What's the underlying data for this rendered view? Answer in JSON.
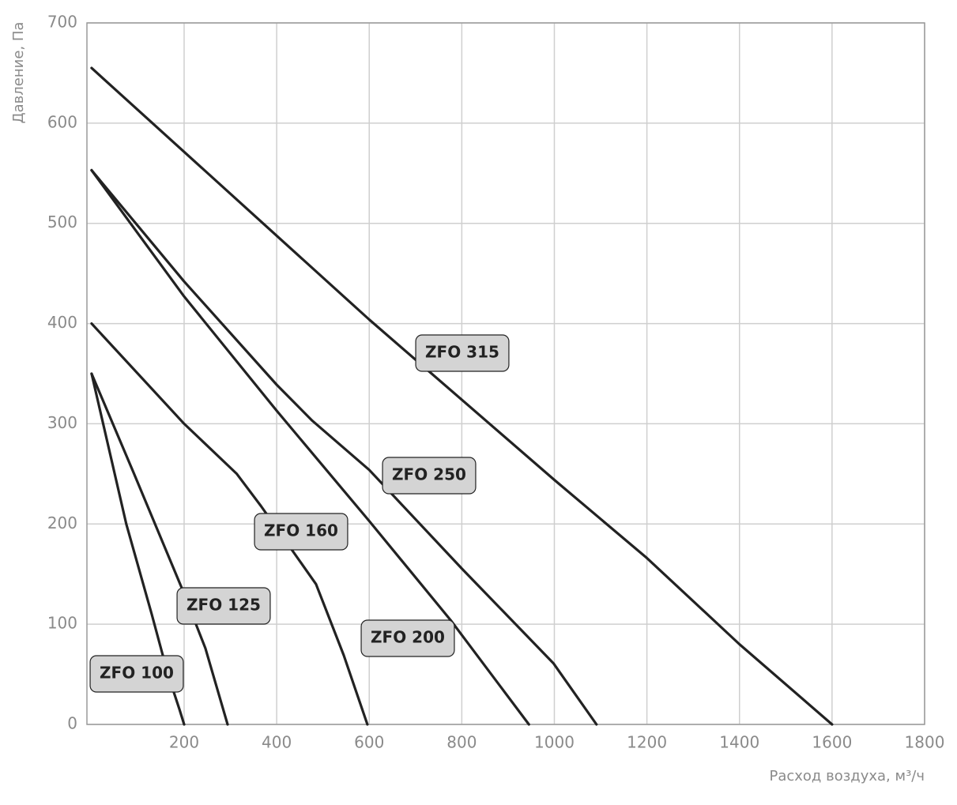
{
  "chart_data": {
    "type": "line",
    "xlabel": "Расход воздуха, м³/ч",
    "ylabel": "Давление, Па",
    "xlim": [
      -10,
      1800
    ],
    "ylim": [
      0,
      700
    ],
    "xticks": [
      200,
      400,
      600,
      800,
      1000,
      1200,
      1400,
      1600,
      1800
    ],
    "yticks": [
      0,
      100,
      200,
      300,
      400,
      500,
      600,
      700
    ],
    "grid": true,
    "series": [
      {
        "name": "ZFO 100",
        "color": "#222222",
        "x": [
          0,
          75,
          130,
          165,
          190,
          200
        ],
        "values": [
          350,
          200,
          110,
          50,
          15,
          0
        ]
      },
      {
        "name": "ZFO 125",
        "color": "#222222",
        "x": [
          0,
          92,
          195,
          246,
          275,
          294
        ],
        "values": [
          350,
          250,
          136,
          76,
          30,
          0
        ]
      },
      {
        "name": "ZFO 160",
        "color": "#222222",
        "x": [
          0,
          200,
          314,
          366,
          485,
          545,
          596
        ],
        "values": [
          400,
          300,
          250,
          218,
          140,
          69,
          0
        ]
      },
      {
        "name": "ZFO 200",
        "color": "#222222",
        "x": [
          0,
          200,
          400,
          600,
          776,
          945
        ],
        "values": [
          553,
          427,
          313,
          203,
          104,
          0
        ]
      },
      {
        "name": "ZFO 250",
        "color": "#222222",
        "x": [
          0,
          200,
          400,
          477,
          600,
          801,
          998,
          1091
        ],
        "values": [
          553,
          442,
          339,
          303,
          254,
          155,
          61,
          0
        ]
      },
      {
        "name": "ZFO 315",
        "color": "#222222",
        "x": [
          0,
          600,
          1000,
          1200,
          1400,
          1600
        ],
        "values": [
          655,
          404,
          244,
          166,
          80,
          0
        ]
      }
    ]
  }
}
